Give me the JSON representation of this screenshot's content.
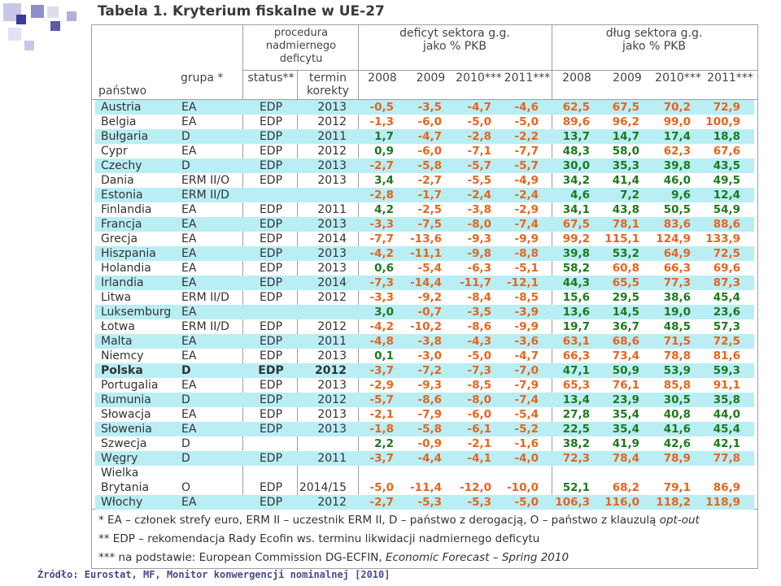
{
  "title": "Tabela 1. Kryterium fiskalne w UE-27",
  "header": {
    "procedure": [
      "procedura",
      "nadmiernego",
      "deficytu"
    ],
    "deficit": [
      "deficyt sektora g.g.",
      "jako % PKB"
    ],
    "debt": [
      "dług sektora g.g.",
      "jako % PKB"
    ],
    "panstwo": "państwo",
    "grupa": "grupa *",
    "status": "status**",
    "termin": [
      "termin",
      "korekty"
    ],
    "years": [
      "2008",
      "2009",
      "2010***",
      "2011***",
      "2008",
      "2009",
      "2010***",
      "2011***"
    ]
  },
  "rows": [
    {
      "name": "Austria",
      "group": "EA",
      "status": "EDP",
      "term": "2013",
      "def": [
        "-0,5",
        "-3,5",
        "-4,7",
        "-4,6"
      ],
      "debt": [
        "62,5",
        "67,5",
        "70,2",
        "72,9"
      ]
    },
    {
      "name": "Belgia",
      "group": "EA",
      "status": "EDP",
      "term": "2012",
      "def": [
        "-1,3",
        "-6,0",
        "-5,0",
        "-5,0"
      ],
      "debt": [
        "89,6",
        "96,2",
        "99,0",
        "100,9"
      ]
    },
    {
      "name": "Bułgaria",
      "group": "D",
      "status": "EDP",
      "term": "2011",
      "def": [
        "1,7",
        "-4,7",
        "-2,8",
        "-2,2"
      ],
      "debt": [
        "13,7",
        "14,7",
        "17,4",
        "18,8"
      ]
    },
    {
      "name": "Cypr",
      "group": "EA",
      "status": "EDP",
      "term": "2012",
      "def": [
        "0,9",
        "-6,0",
        "-7,1",
        "-7,7"
      ],
      "debt": [
        "48,3",
        "58,0",
        "62,3",
        "67,6"
      ]
    },
    {
      "name": "Czechy",
      "group": "D",
      "status": "EDP",
      "term": "2013",
      "def": [
        "-2,7",
        "-5,8",
        "-5,7",
        "-5,7"
      ],
      "debt": [
        "30,0",
        "35,3",
        "39,8",
        "43,5"
      ]
    },
    {
      "name": "Dania",
      "group": "ERM II/O",
      "status": "EDP",
      "term": "2013",
      "def": [
        "3,4",
        "-2,7",
        "-5,5",
        "-4,9"
      ],
      "debt": [
        "34,2",
        "41,4",
        "46,0",
        "49,5"
      ]
    },
    {
      "name": "Estonia",
      "group": "ERM II/D",
      "status": "",
      "term": "",
      "def": [
        "-2,8",
        "-1,7",
        "-2,4",
        "-2,4"
      ],
      "debt": [
        "4,6",
        "7,2",
        "9,6",
        "12,4"
      ]
    },
    {
      "name": "Finlandia",
      "group": "EA",
      "status": "EDP",
      "term": "2011",
      "def": [
        "4,2",
        "-2,5",
        "-3,8",
        "-2,9"
      ],
      "debt": [
        "34,1",
        "43,8",
        "50,5",
        "54,9"
      ]
    },
    {
      "name": "Francja",
      "group": "EA",
      "status": "EDP",
      "term": "2013",
      "def": [
        "-3,3",
        "-7,5",
        "-8,0",
        "-7,4"
      ],
      "debt": [
        "67,5",
        "78,1",
        "83,6",
        "88,6"
      ]
    },
    {
      "name": "Grecja",
      "group": "EA",
      "status": "EDP",
      "term": "2014",
      "def": [
        "-7,7",
        "-13,6",
        "-9,3",
        "-9,9"
      ],
      "debt": [
        "99,2",
        "115,1",
        "124,9",
        "133,9"
      ]
    },
    {
      "name": "Hiszpania",
      "group": "EA",
      "status": "EDP",
      "term": "2013",
      "def": [
        "-4,2",
        "-11,1",
        "-9,8",
        "-8,8"
      ],
      "debt": [
        "39,8",
        "53,2",
        "64,9",
        "72,5"
      ]
    },
    {
      "name": "Holandia",
      "group": "EA",
      "status": "EDP",
      "term": "2013",
      "def": [
        "0,6",
        "-5,4",
        "-6,3",
        "-5,1"
      ],
      "debt": [
        "58,2",
        "60,8",
        "66,3",
        "69,6"
      ]
    },
    {
      "name": "Irlandia",
      "group": "EA",
      "status": "EDP",
      "term": "2014",
      "def": [
        "-7,3",
        "-14,4",
        "-11,7",
        "-12,1"
      ],
      "debt": [
        "44,3",
        "65,5",
        "77,3",
        "87,3"
      ]
    },
    {
      "name": "Litwa",
      "group": "ERM II/D",
      "status": "EDP",
      "term": "2012",
      "def": [
        "-3,3",
        "-9,2",
        "-8,4",
        "-8,5"
      ],
      "debt": [
        "15,6",
        "29,5",
        "38,6",
        "45,4"
      ]
    },
    {
      "name": "Luksemburg",
      "group": "EA",
      "status": "",
      "term": "",
      "def": [
        "3,0",
        "-0,7",
        "-3,5",
        "-3,9"
      ],
      "debt": [
        "13,6",
        "14,5",
        "19,0",
        "23,6"
      ]
    },
    {
      "name": "Łotwa",
      "group": "ERM II/D",
      "status": "EDP",
      "term": "2012",
      "def": [
        "-4,2",
        "-10,2",
        "-8,6",
        "-9,9"
      ],
      "debt": [
        "19,7",
        "36,7",
        "48,5",
        "57,3"
      ]
    },
    {
      "name": "Malta",
      "group": "EA",
      "status": "EDP",
      "term": "2011",
      "def": [
        "-4,8",
        "-3,8",
        "-4,3",
        "-3,6"
      ],
      "debt": [
        "63,1",
        "68,6",
        "71,5",
        "72,5"
      ]
    },
    {
      "name": "Niemcy",
      "group": "EA",
      "status": "EDP",
      "term": "2013",
      "def": [
        "0,1",
        "-3,0",
        "-5,0",
        "-4,7"
      ],
      "debt": [
        "66,3",
        "73,4",
        "78,8",
        "81,6"
      ]
    },
    {
      "name": "Polska",
      "group": "D",
      "status": "EDP",
      "term": "2012",
      "def": [
        "-3,7",
        "-7,2",
        "-7,3",
        "-7,0"
      ],
      "debt": [
        "47,1",
        "50,9",
        "53,9",
        "59,3"
      ],
      "bold": true
    },
    {
      "name": "Portugalia",
      "group": "EA",
      "status": "EDP",
      "term": "2013",
      "def": [
        "-2,9",
        "-9,3",
        "-8,5",
        "-7,9"
      ],
      "debt": [
        "65,3",
        "76,1",
        "85,8",
        "91,1"
      ]
    },
    {
      "name": "Rumunia",
      "group": "D",
      "status": "EDP",
      "term": "2012",
      "def": [
        "-5,7",
        "-8,6",
        "-8,0",
        "-7,4"
      ],
      "debt": [
        "13,4",
        "23,9",
        "30,5",
        "35,8"
      ]
    },
    {
      "name": "Słowacja",
      "group": "EA",
      "status": "EDP",
      "term": "2013",
      "def": [
        "-2,1",
        "-7,9",
        "-6,0",
        "-5,4"
      ],
      "debt": [
        "27,8",
        "35,4",
        "40,8",
        "44,0"
      ]
    },
    {
      "name": "Słowenia",
      "group": "EA",
      "status": "EDP",
      "term": "2013",
      "def": [
        "-1,8",
        "-5,8",
        "-6,1",
        "-5,2"
      ],
      "debt": [
        "22,5",
        "35,4",
        "41,6",
        "45,4"
      ]
    },
    {
      "name": "Szwecja",
      "group": "D",
      "status": "",
      "term": "",
      "def": [
        "2,2",
        "-0,9",
        "-2,1",
        "-1,6"
      ],
      "debt": [
        "38,2",
        "41,9",
        "42,6",
        "42,1"
      ]
    },
    {
      "name": "Węgry",
      "group": "D",
      "status": "EDP",
      "term": "2011",
      "def": [
        "-3,7",
        "-4,4",
        "-4,1",
        "-4,0"
      ],
      "debt": [
        "72,3",
        "78,4",
        "78,9",
        "77,8"
      ]
    },
    {
      "name": "Wielka Brytania",
      "name_line1": "Wielka",
      "name_line2": "Brytania",
      "group": "O",
      "status": "EDP",
      "term": "2014/15",
      "def": [
        "-5,0",
        "-11,4",
        "-12,0",
        "-10,0"
      ],
      "debt": [
        "52,1",
        "68,2",
        "79,1",
        "86,9"
      ]
    },
    {
      "name": "Włochy",
      "group": "EA",
      "status": "EDP",
      "term": "2012",
      "def": [
        "-2,7",
        "-5,3",
        "-5,3",
        "-5,0"
      ],
      "debt": [
        "106,3",
        "116,0",
        "118,2",
        "118,9"
      ]
    }
  ],
  "footnotes": {
    "f1_pre": "* EA – członek strefy euro, ERM II – uczestnik ERM II, D – państwo z derogacją, O – państwo z klauzulą ",
    "f1_italic": "opt-out",
    "f2": "** EDP – rekomendacja Rady Ecofin ws. terminu likwidacji nadmiernego deficytu",
    "f3_pre": "*** na podstawie: European Commission DG-ECFIN, ",
    "f3_italic": "Economic Forecast – Spring 2010"
  },
  "source": "Źródło: Eurostat, MF, Monitor konwergencji nominalnej [2010]",
  "colors": {
    "positive": "#1c7a1c",
    "negative": "#e8641e",
    "stripe": "#b9eef4",
    "deco": "#3b3ba0"
  }
}
